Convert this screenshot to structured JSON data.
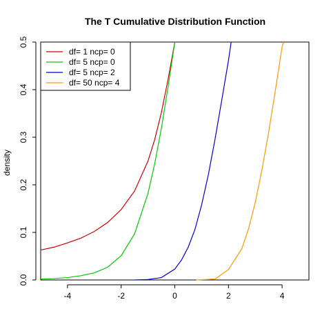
{
  "chart_data": {
    "type": "line",
    "title": "The T Cumulative Distribution Function",
    "xlabel": "",
    "ylabel": "density",
    "xlim": [
      -5,
      5
    ],
    "ylim": [
      0,
      0.5
    ],
    "xticks": [
      -4,
      -2,
      0,
      2,
      4
    ],
    "yticks": [
      0.0,
      0.1,
      0.2,
      0.3,
      0.4,
      0.5
    ],
    "xtick_labels": [
      "-4",
      "-2",
      "0",
      "2",
      "4"
    ],
    "ytick_labels": [
      "0.0",
      "0.1",
      "0.2",
      "0.3",
      "0.4",
      "0.5"
    ],
    "grid": false,
    "legend_position": "top-left",
    "series": [
      {
        "name": "df= 1  ncp= 0",
        "color": "#cc0000",
        "x": [
          -5,
          -4.5,
          -4,
          -3.5,
          -3,
          -2.5,
          -2,
          -1.5,
          -1,
          -0.75,
          -0.5,
          -0.25,
          0
        ],
        "y": [
          0.063,
          0.069,
          0.078,
          0.088,
          0.102,
          0.121,
          0.148,
          0.187,
          0.25,
          0.295,
          0.352,
          0.422,
          0.5
        ]
      },
      {
        "name": "df= 5  ncp= 0",
        "color": "#00cc00",
        "x": [
          -5,
          -4.5,
          -4,
          -3.5,
          -3,
          -2.5,
          -2,
          -1.5,
          -1,
          -0.75,
          -0.5,
          -0.25,
          0
        ],
        "y": [
          0.002,
          0.003,
          0.005,
          0.009,
          0.015,
          0.027,
          0.051,
          0.097,
          0.182,
          0.244,
          0.319,
          0.406,
          0.5
        ]
      },
      {
        "name": "df= 5  ncp= 2",
        "color": "#0000cc",
        "x": [
          -1.5,
          -1,
          -0.5,
          0,
          0.25,
          0.5,
          0.75,
          1,
          1.25,
          1.5,
          1.75,
          2,
          2.1
        ],
        "y": [
          0,
          0.001,
          0.005,
          0.023,
          0.042,
          0.069,
          0.106,
          0.158,
          0.221,
          0.296,
          0.378,
          0.461,
          0.5
        ]
      },
      {
        "name": "df= 50  ncp= 4",
        "color": "#ff9900",
        "x": [
          0.8,
          1.5,
          2,
          2.5,
          2.75,
          3,
          3.25,
          3.5,
          3.75,
          4,
          4.05
        ],
        "y": [
          0,
          0.002,
          0.022,
          0.066,
          0.108,
          0.163,
          0.232,
          0.311,
          0.399,
          0.49,
          0.5
        ]
      }
    ]
  }
}
